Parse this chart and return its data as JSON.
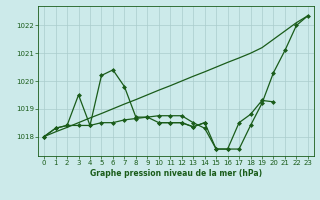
{
  "background_color": "#cceaea",
  "grid_color": "#aacccc",
  "line_color": "#1a5c1a",
  "title": "Graphe pression niveau de la mer (hPa)",
  "xlim": [
    -0.5,
    23.5
  ],
  "ylim": [
    1017.3,
    1022.7
  ],
  "yticks": [
    1018,
    1019,
    1020,
    1021,
    1022
  ],
  "xticks": [
    0,
    1,
    2,
    3,
    4,
    5,
    6,
    7,
    8,
    9,
    10,
    11,
    12,
    13,
    14,
    15,
    16,
    17,
    18,
    19,
    20,
    21,
    22,
    23
  ],
  "line1_x": [
    0,
    1,
    2,
    3,
    4,
    5,
    6,
    7,
    8,
    9,
    10,
    11,
    12,
    13,
    14
  ],
  "line1_y": [
    1018.0,
    1018.3,
    1018.4,
    1019.5,
    1018.4,
    1020.2,
    1020.4,
    1019.8,
    1018.7,
    1018.7,
    1018.5,
    1018.5,
    1018.5,
    1018.35,
    1018.5
  ],
  "line2_x": [
    0,
    1,
    2,
    3,
    4,
    5,
    6,
    7,
    8,
    9,
    10,
    11,
    12,
    13,
    14,
    15,
    16,
    17,
    18,
    19,
    20,
    21,
    22,
    23
  ],
  "line2_y": [
    1018.0,
    1018.17,
    1018.33,
    1018.5,
    1018.67,
    1018.83,
    1019.0,
    1019.17,
    1019.33,
    1019.5,
    1019.67,
    1019.83,
    1020.0,
    1020.17,
    1020.33,
    1020.5,
    1020.67,
    1020.83,
    1021.0,
    1021.2,
    1021.5,
    1021.8,
    1022.1,
    1022.35
  ],
  "line3_x": [
    0,
    1,
    2,
    3,
    4,
    5,
    6,
    7,
    8,
    9,
    10,
    11,
    12,
    13,
    14,
    15,
    16,
    17,
    18,
    19,
    20,
    21,
    22,
    23
  ],
  "line3_y": [
    1018.0,
    1018.3,
    1018.4,
    1018.4,
    1018.4,
    1018.5,
    1018.5,
    1018.6,
    1018.65,
    1018.7,
    1018.75,
    1018.75,
    1018.75,
    1018.5,
    1018.3,
    1017.55,
    1017.55,
    1017.55,
    1018.4,
    1019.2,
    1020.3,
    1021.1,
    1022.0,
    1022.35
  ],
  "line4_x": [
    10,
    11,
    12,
    13,
    14,
    15,
    16,
    17,
    18,
    19,
    20
  ],
  "line4_y": [
    1018.5,
    1018.5,
    1018.5,
    1018.35,
    1018.5,
    1017.55,
    1017.55,
    1018.5,
    1018.8,
    1019.3,
    1019.25
  ]
}
